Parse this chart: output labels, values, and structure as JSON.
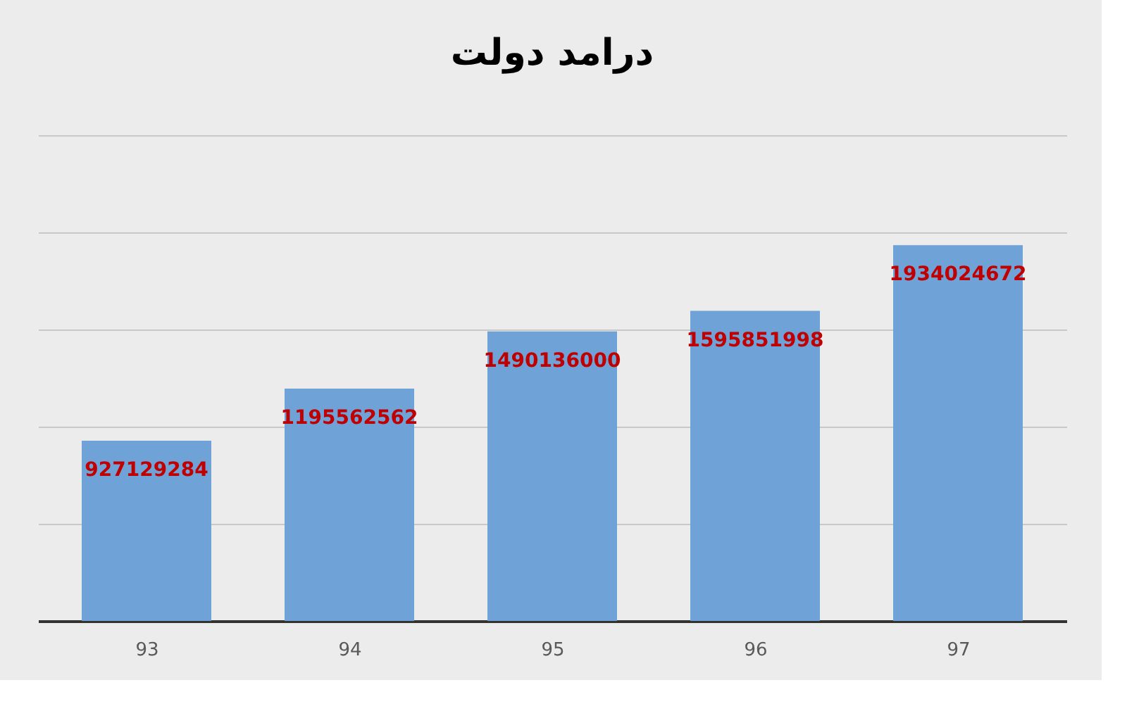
{
  "chart_data": {
    "type": "bar",
    "title": "درامد دولت",
    "categories": [
      "93",
      "94",
      "95",
      "96",
      "97"
    ],
    "values": [
      927129284,
      1195562562,
      1490136000,
      1595851998,
      1934024672
    ],
    "color": "#6fa3d8",
    "data_labels": true,
    "ylim": [
      0,
      2500000000
    ],
    "yticks": [
      {
        "value": 0,
        "label": null
      },
      {
        "value": 500000000,
        "label": null
      },
      {
        "value": 1000000000,
        "label": null
      },
      {
        "value": 1500000000,
        "label": null
      },
      {
        "value": 2000000000,
        "label": null
      },
      {
        "value": 2500000000,
        "label": null
      }
    ],
    "grid": "y"
  }
}
